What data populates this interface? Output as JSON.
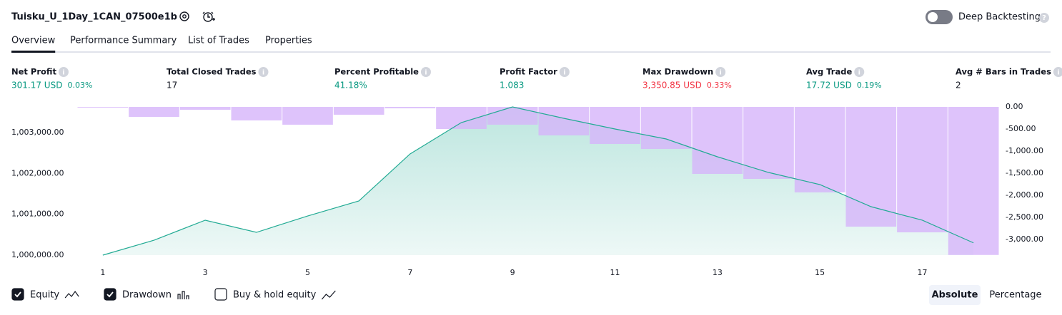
{
  "header": {
    "title": "Tuisku_U_1Day_1CAN_07500e1b",
    "deep_backtesting": "Deep Backtesting",
    "deep_backtesting_on": false
  },
  "tabs": [
    "Overview",
    "Performance Summary",
    "List of Trades",
    "Properties"
  ],
  "active_tab": 0,
  "metrics": [
    {
      "label": "Net Profit",
      "value": "301.17 USD",
      "percent": "0.03%",
      "color": "#089981"
    },
    {
      "label": "Total Closed Trades",
      "value": "17",
      "color": "#131722"
    },
    {
      "label": "Percent Profitable",
      "value": "41.18%",
      "color": "#089981"
    },
    {
      "label": "Profit Factor",
      "value": "1.083",
      "color": "#089981"
    },
    {
      "label": "Max Drawdown",
      "value": "3,350.85 USD",
      "percent": "0.33%",
      "color": "#f23645"
    },
    {
      "label": "Avg Trade",
      "value": "17.72 USD",
      "percent": "0.19%",
      "color": "#089981"
    },
    {
      "label": "Avg # Bars in Trades",
      "value": "2",
      "color": "#131722"
    }
  ],
  "chart_data": {
    "type": "combo",
    "x": [
      1,
      2,
      3,
      4,
      5,
      6,
      7,
      8,
      9,
      10,
      11,
      12,
      13,
      14,
      15,
      16,
      17,
      18
    ],
    "xlim": [
      0.5,
      18.5
    ],
    "xticks": [
      1,
      3,
      5,
      7,
      9,
      11,
      13,
      15,
      17
    ],
    "ylim": [
      1000000,
      1003628
    ],
    "yticks": [
      {
        "value": 1000000,
        "label": "1,000,000.00"
      },
      {
        "value": 1001000,
        "label": "1,001,000.00"
      },
      {
        "value": 1002000,
        "label": "1,002,000.00"
      },
      {
        "value": 1003000,
        "label": "1,003,000.00"
      }
    ],
    "y2lim": [
      -3355,
      0
    ],
    "y2ticks": [
      {
        "value": 0,
        "label": "0.00"
      },
      {
        "value": -500,
        "label": "-500.00"
      },
      {
        "value": -1000,
        "label": "-1,000.00"
      },
      {
        "value": -1500,
        "label": "-1,500.00"
      },
      {
        "value": -2000,
        "label": "-2,000.00"
      },
      {
        "value": -2500,
        "label": "-2,500.00"
      },
      {
        "value": -3000,
        "label": "-3,000.00"
      }
    ],
    "series": [
      {
        "name": "Equity",
        "type": "area",
        "color": "#22ab94",
        "axis": "y",
        "values": [
          1000000,
          1000366,
          1000855,
          1000558,
          1000959,
          1001326,
          1002477,
          1003244,
          1003628,
          1003349,
          1003087,
          1002843,
          1002407,
          1002023,
          1001727,
          1001186,
          1000855,
          1000301
        ]
      },
      {
        "name": "Drawdown",
        "type": "bar",
        "color": "#d6b4fa",
        "axis": "y2",
        "values": [
          -16,
          -226,
          -65,
          -306,
          -403,
          -177,
          -32,
          -500,
          -403,
          -645,
          -839,
          -952,
          -1516,
          -1629,
          -1935,
          -2710,
          -2839,
          -3351
        ]
      }
    ]
  },
  "controls": {
    "checkboxes": [
      {
        "label": "Equity",
        "checked": true
      },
      {
        "label": "Drawdown",
        "checked": true
      },
      {
        "label": "Buy & hold equity",
        "checked": false
      }
    ],
    "modes": [
      "Absolute",
      "Percentage"
    ],
    "active_mode": 0
  }
}
